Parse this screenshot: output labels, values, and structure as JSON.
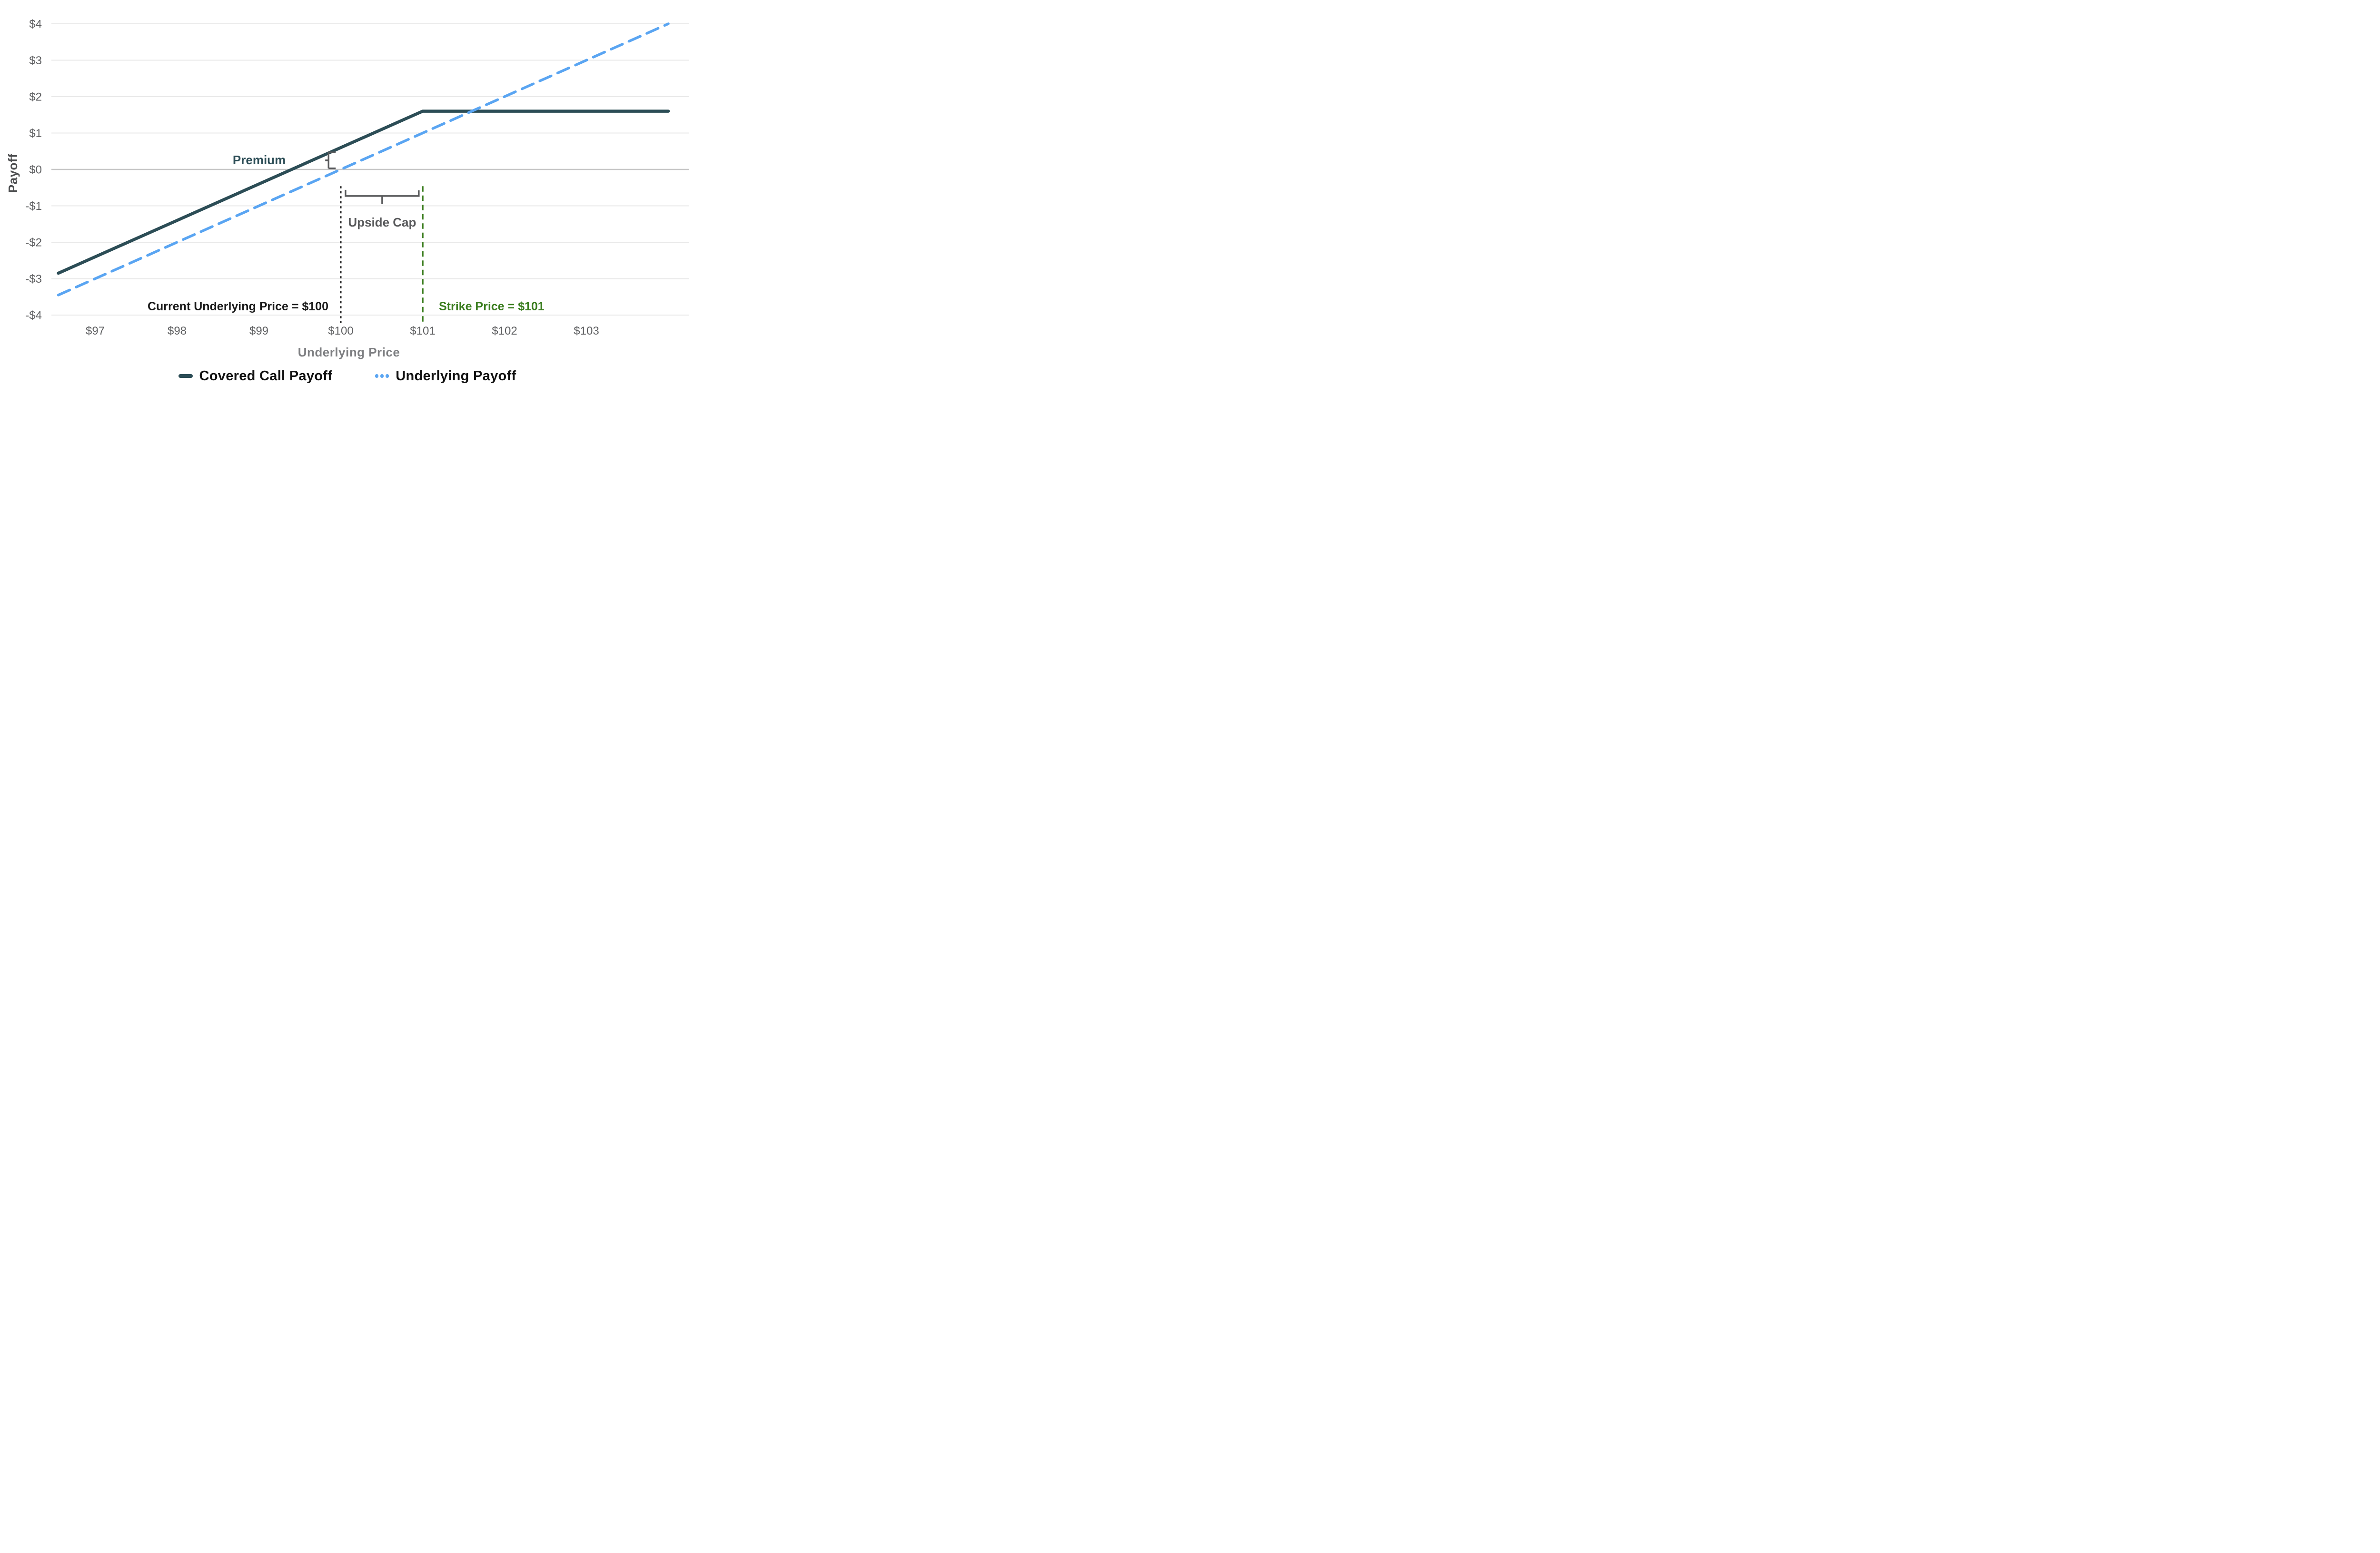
{
  "chart_data": {
    "type": "line",
    "title": "",
    "xlabel": "Underlying Price",
    "ylabel": "Payoff",
    "xlim": [
      96.55,
      104.26
    ],
    "ylim": [
      -4,
      4
    ],
    "grid": true,
    "legend_position": "bottom",
    "x_ticks": [
      97,
      98,
      99,
      100,
      101,
      102,
      103
    ],
    "x_tick_labels": [
      "$97",
      "$98",
      "$99",
      "$100",
      "$101",
      "$102",
      "$103"
    ],
    "y_ticks": [
      4,
      3,
      2,
      1,
      0,
      -1,
      -2,
      -3,
      -4
    ],
    "y_tick_labels": [
      "$4",
      "$3",
      "$2",
      "$1",
      "$0",
      "-$1",
      "-$2",
      "-$3",
      "-$4"
    ],
    "series": [
      {
        "name": "Covered Call Payoff",
        "style": "solid",
        "color": "#2C4D56",
        "points": [
          [
            96.55,
            -2.85
          ],
          [
            101,
            1.6
          ],
          [
            104,
            1.6
          ]
        ]
      },
      {
        "name": "Underlying Payoff",
        "style": "dashed",
        "color": "#5AA5F2",
        "points": [
          [
            96.55,
            -3.45
          ],
          [
            104,
            4.0
          ]
        ]
      }
    ],
    "annotations": {
      "premium": {
        "label": "Premium",
        "bracket_x": 99.85,
        "y_from": 0.03,
        "y_to": 0.47
      },
      "upside_cap": {
        "label": "Upside Cap",
        "x_from": 100.04,
        "x_to": 100.97,
        "y": -0.73,
        "label_y": -1.45
      },
      "current_price": {
        "label": "Current Underlying Price = $100",
        "x": 100,
        "line_top": -0.46,
        "line_bottom": -4.22,
        "label_y": -3.75
      },
      "strike_price": {
        "label": "Strike Price = $101",
        "x": 101,
        "line_top": -0.46,
        "line_bottom": -4.22,
        "label_y": -3.75
      }
    }
  },
  "legend": {
    "items": [
      {
        "label": "Covered Call Payoff",
        "marker": "solid-line"
      },
      {
        "label": "Underlying Payoff",
        "marker": "dashed-line"
      }
    ]
  },
  "colors": {
    "covered_call": "#2C4D56",
    "underlying": "#5AA5F2",
    "strike_green": "#3A7D1E",
    "annotation_black": "#1A1A1A",
    "annotation_gray": "#58595B",
    "tick_label": "#5E5F61",
    "y_axis_title": "#4D4E50",
    "x_axis_title": "#7E7F82",
    "gridline": "#E9E9E9",
    "zero_line": "#C6C6C6",
    "legend_text": "#111111",
    "background": "#FFFFFF"
  }
}
